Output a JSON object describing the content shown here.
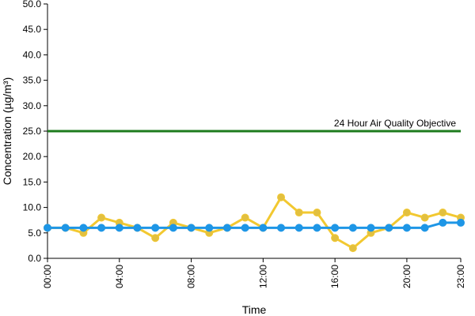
{
  "chart_data": {
    "type": "line",
    "title": "",
    "xlabel": "Time",
    "ylabel": "Concentration (µg/m³)",
    "ylim": [
      0,
      50
    ],
    "yticks": [
      "0.0",
      "5.0",
      "10.0",
      "15.0",
      "20.0",
      "25.0",
      "30.0",
      "35.0",
      "40.0",
      "45.0",
      "50.0"
    ],
    "xticks": [
      {
        "hour": 0,
        "label": "00:00"
      },
      {
        "hour": 4,
        "label": "04:00"
      },
      {
        "hour": 8,
        "label": "08:00"
      },
      {
        "hour": 12,
        "label": "12:00"
      },
      {
        "hour": 16,
        "label": "16:00"
      },
      {
        "hour": 20,
        "label": "20:00"
      },
      {
        "hour": 23,
        "label": "23:00"
      }
    ],
    "x": [
      0,
      1,
      2,
      3,
      4,
      5,
      6,
      7,
      8,
      9,
      10,
      11,
      12,
      13,
      14,
      15,
      16,
      17,
      18,
      19,
      20,
      21,
      22,
      23
    ],
    "grid": false,
    "legend": "none",
    "series": [
      {
        "color": "#f2c830",
        "marker_color": "#e2c040",
        "values": [
          6,
          6,
          5,
          8,
          7,
          6,
          4,
          7,
          6,
          5,
          6,
          8,
          6,
          12,
          9,
          9,
          4,
          2,
          5,
          6,
          9,
          8,
          9,
          8
        ]
      },
      {
        "color": "#1e96e6",
        "marker_color": "#1e96e6",
        "values": [
          6,
          6,
          6,
          6,
          6,
          6,
          6,
          6,
          6,
          6,
          6,
          6,
          6,
          6,
          6,
          6,
          6,
          6,
          6,
          6,
          6,
          6,
          7,
          7
        ]
      }
    ],
    "reference_lines": [
      {
        "value": 25,
        "label": "24 Hour Air Quality Objective",
        "color": "#1e7b1e"
      }
    ]
  }
}
